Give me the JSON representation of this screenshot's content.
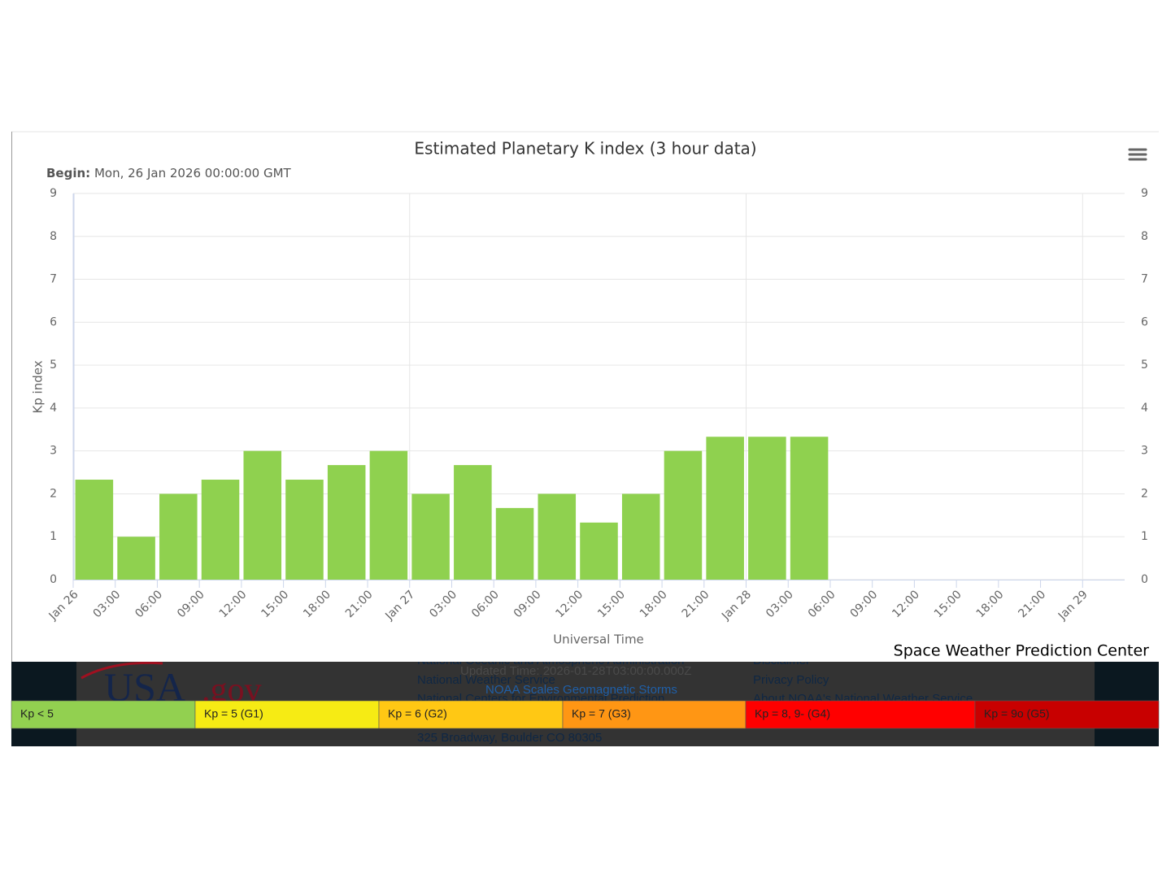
{
  "chart_data": {
    "type": "bar",
    "title": "Estimated Planetary K index (3 hour data)",
    "subtitle_label": "Begin:",
    "subtitle": "Mon, 26 Jan 2026 00:00:00 GMT",
    "y_label": "Kp index",
    "x_label": "Universal Time",
    "credit": "Space Weather Prediction Center",
    "color": "#8fd14f",
    "x": [
      0,
      3,
      6,
      9,
      12,
      15,
      18,
      21,
      24,
      27,
      30,
      33,
      36,
      39,
      42,
      45,
      48,
      51
    ],
    "values": [
      2.33,
      1,
      2,
      2.33,
      3,
      2.33,
      2.67,
      3,
      2,
      2.67,
      1.67,
      2,
      1.33,
      2,
      3,
      3.33,
      3.33,
      3.33
    ],
    "xlim": [
      0,
      75
    ],
    "xticks": [
      {
        "value": 0,
        "label": "Jan 26"
      },
      {
        "value": 3,
        "label": "03:00"
      },
      {
        "value": 6,
        "label": "06:00"
      },
      {
        "value": 9,
        "label": "09:00"
      },
      {
        "value": 12,
        "label": "12:00"
      },
      {
        "value": 15,
        "label": "15:00"
      },
      {
        "value": 18,
        "label": "18:00"
      },
      {
        "value": 21,
        "label": "21:00"
      },
      {
        "value": 24,
        "label": "Jan 27"
      },
      {
        "value": 27,
        "label": "03:00"
      },
      {
        "value": 30,
        "label": "06:00"
      },
      {
        "value": 33,
        "label": "09:00"
      },
      {
        "value": 36,
        "label": "12:00"
      },
      {
        "value": 39,
        "label": "15:00"
      },
      {
        "value": 42,
        "label": "18:00"
      },
      {
        "value": 45,
        "label": "21:00"
      },
      {
        "value": 48,
        "label": "Jan 28"
      },
      {
        "value": 51,
        "label": "03:00"
      },
      {
        "value": 54,
        "label": "06:00"
      },
      {
        "value": 57,
        "label": "09:00"
      },
      {
        "value": 60,
        "label": "12:00"
      },
      {
        "value": 63,
        "label": "15:00"
      },
      {
        "value": 66,
        "label": "18:00"
      },
      {
        "value": 69,
        "label": "21:00"
      },
      {
        "value": 72,
        "label": "Jan 29"
      }
    ],
    "ylim": [
      0,
      9
    ],
    "yticks": [
      0,
      1,
      2,
      3,
      4,
      5,
      6,
      7,
      8,
      9
    ],
    "y2lim": [
      0,
      9
    ],
    "y2ticks": [
      0,
      1,
      2,
      3,
      4,
      5,
      6,
      7,
      8,
      9
    ],
    "grid": true
  },
  "footer": {
    "logo": {
      "usa": "USA",
      "gov": ".gov"
    },
    "agency": [
      "National Oceanic and Atmospheric Administration",
      "National Weather Service",
      "National Centers for Environmental Prediction",
      "325 Broadway, Boulder CO 80305"
    ],
    "updated": "Updated Time: 2026-01-28T03:00:00.000Z",
    "link": "NOAA Scales Geomagnetic Storms",
    "links": [
      "Disclaimer",
      "Privacy Policy",
      "About NOAA's National Weather Service"
    ]
  },
  "scale_legend": [
    {
      "label": "Kp < 5",
      "color": "#92d050"
    },
    {
      "label": "Kp = 5 (G1)",
      "color": "#f6eb14"
    },
    {
      "label": "Kp = 6 (G2)",
      "color": "#ffc814"
    },
    {
      "label": "Kp = 7 (G3)",
      "color": "#ff9614"
    },
    {
      "label": "Kp = 8, 9- (G4)",
      "color": "#ff0000"
    },
    {
      "label": "Kp = 9o (G5)",
      "color": "#c80000"
    }
  ]
}
